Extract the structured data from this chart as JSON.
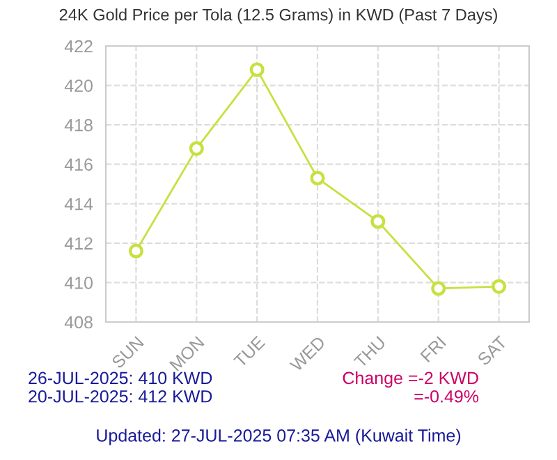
{
  "chart_data": {
    "type": "line",
    "title": "24K Gold Price per Tola (12.5 Grams) in KWD (Past 7 Days)",
    "categories": [
      "SUN",
      "MON",
      "TUE",
      "WED",
      "THU",
      "FRI",
      "SAT"
    ],
    "series": [
      {
        "color": "#c8e040",
        "values": [
          411.6,
          416.8,
          420.8,
          415.3,
          413.1,
          409.7,
          409.8
        ]
      }
    ],
    "ylim": [
      408,
      422
    ],
    "yticks": [
      408,
      410,
      412,
      414,
      416,
      418,
      420,
      422
    ],
    "grid": true,
    "marker": "circle",
    "line_style": "solid",
    "legend": false,
    "annotations": [
      "26-JUL-2025: 410 KWD",
      "20-JUL-2025: 412 KWD",
      "Change =-2 KWD",
      "=-0.49%",
      "Updated: 27-JUL-2025 07:35 AM (Kuwait Time)"
    ]
  }
}
